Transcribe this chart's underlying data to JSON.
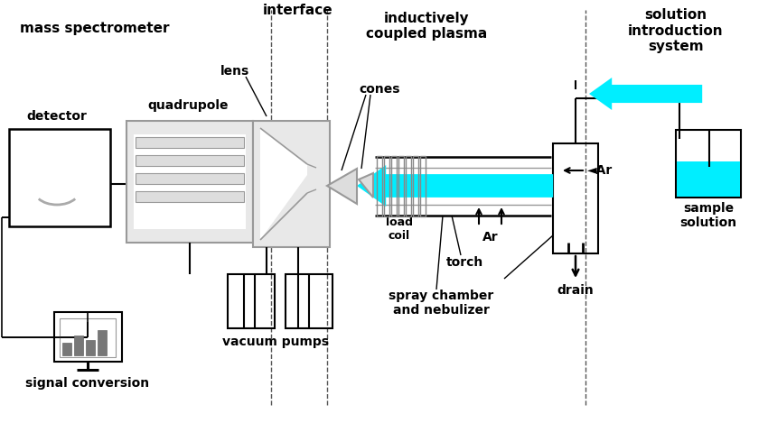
{
  "bg_color": "#ffffff",
  "lc": "#000000",
  "gc": "#999999",
  "gc2": "#bbbbbb",
  "cc": "#00EEFF",
  "figsize": [
    8.5,
    4.69
  ],
  "dpi": 100,
  "texts": {
    "mass_spectrometer": "mass spectrometer",
    "inductively_coupled_plasma": "inductively\ncoupled plasma",
    "solution_introduction_system": "solution\nintroduction\nsystem",
    "interface": "interface",
    "detector": "detector",
    "quadrupole": "quadrupole",
    "lens": "lens",
    "cones": "cones",
    "load_coil": "load\ncoil",
    "torch": "torch",
    "ar1": "Ar",
    "ar2": "◄Ar",
    "vacuum_pumps": "vacuum pumps",
    "signal_conversion": "signal conversion",
    "drain": "drain",
    "sample_solution": "sample\nsolution",
    "spray_chamber": "spray chamber\nand nebulizer"
  }
}
